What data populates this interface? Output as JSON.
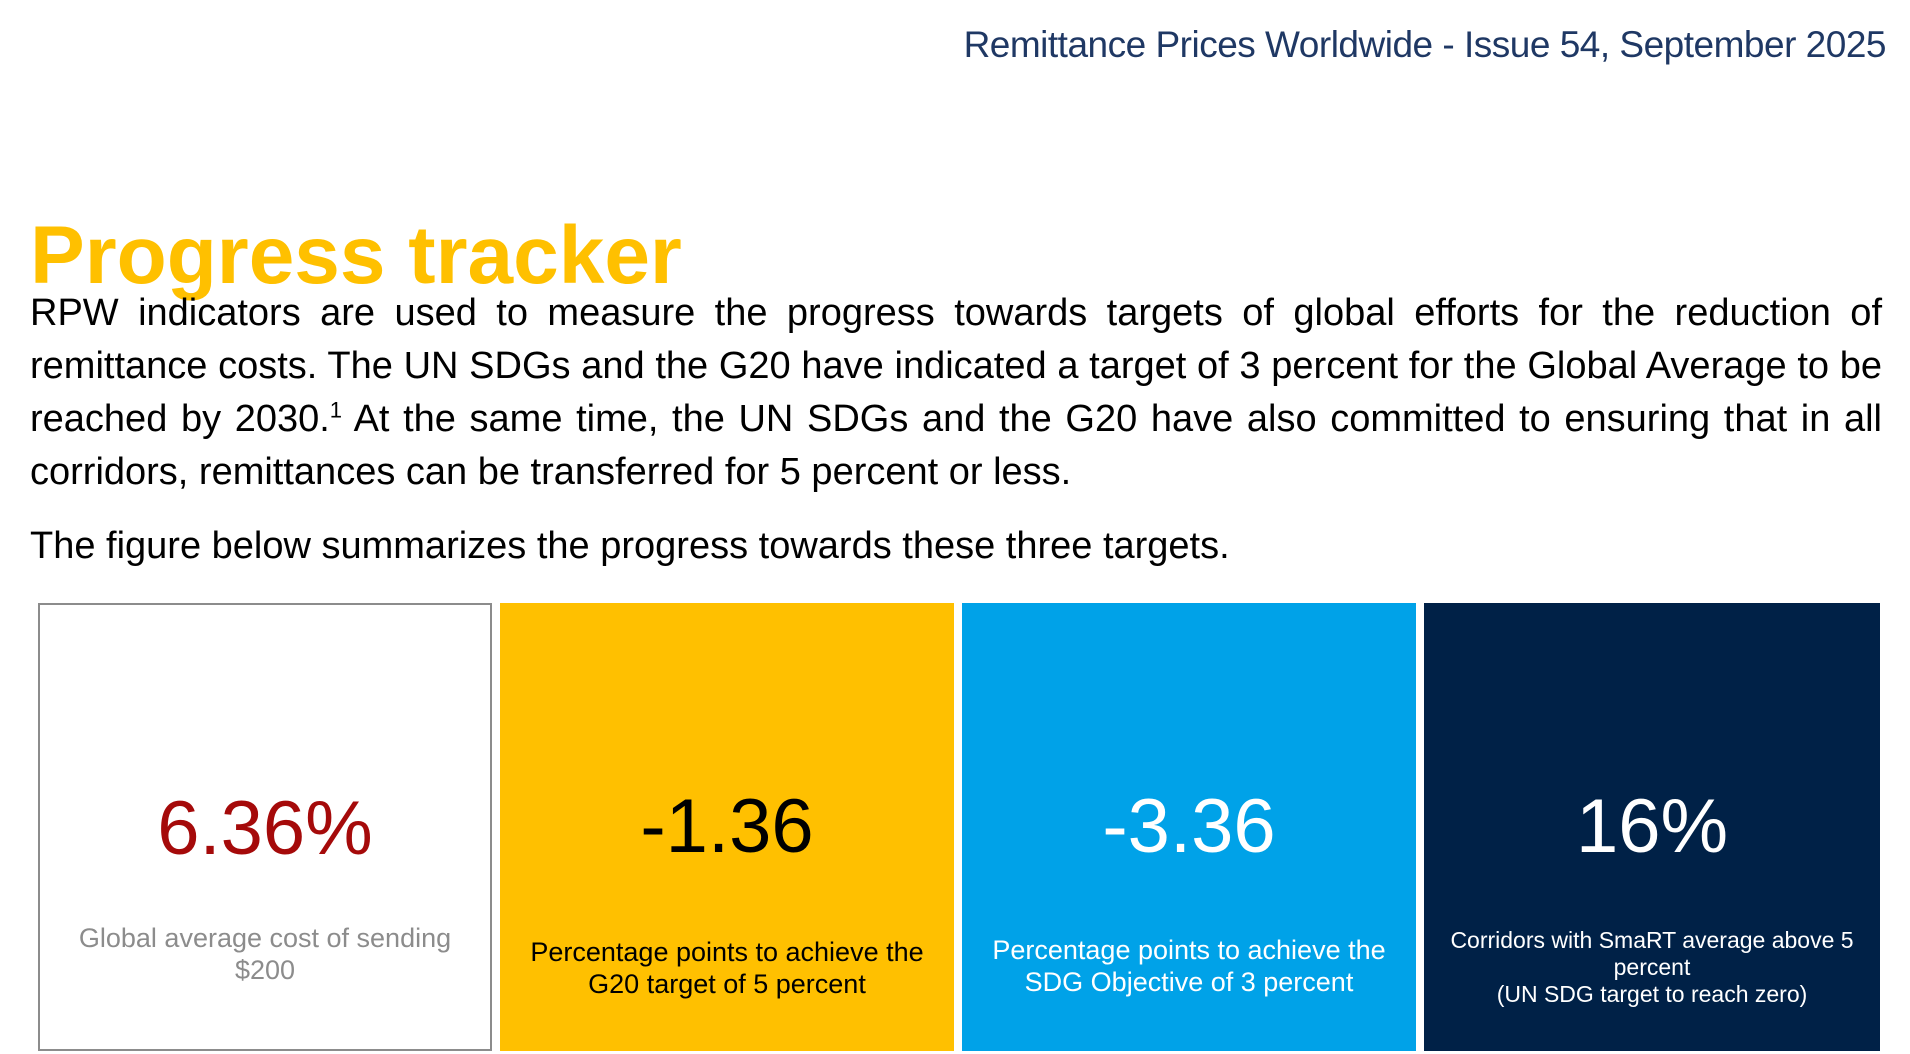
{
  "header": {
    "publication_line": "Remittance Prices Worldwide - Issue 54, September 2025"
  },
  "page_title": "Progress tracker",
  "intro": {
    "para1_before_note": "RPW indicators are used to measure the progress towards targets of global efforts for the reduction of remittance costs. The UN SDGs and the G20 have indicated a target of 3 percent for the Global Average to be reached by 2030.",
    "footnote_ref": "1",
    "para1_after_note": " At the same time, the UN SDGs and the G20 have also committed to ensuring that in all corridors, remittances can be transferred for 5 percent or less.",
    "para2": "The figure below summarizes the progress towards these three targets."
  },
  "tiles": [
    {
      "value": "6.36%",
      "caption": "Global average cost of sending $200",
      "background": "#ffffff",
      "value_color": "#a50a0a"
    },
    {
      "value": "-1.36",
      "caption": "Percentage points to achieve the G20 target of 5 percent",
      "background": "#ffc000",
      "value_color": "#000000"
    },
    {
      "value": "-3.36",
      "caption": "Percentage points to achieve the SDG Objective of 3 percent",
      "background": "#00a2e8",
      "value_color": "#ffffff"
    },
    {
      "value": "16%",
      "caption_line1": "Corridors with SmaRT average above 5 percent",
      "caption_line2": "(UN SDG target to reach zero)",
      "background": "#002147",
      "value_color": "#ffffff"
    }
  ],
  "colors": {
    "title_accent": "#ffc000",
    "header_text": "#1f3864"
  }
}
